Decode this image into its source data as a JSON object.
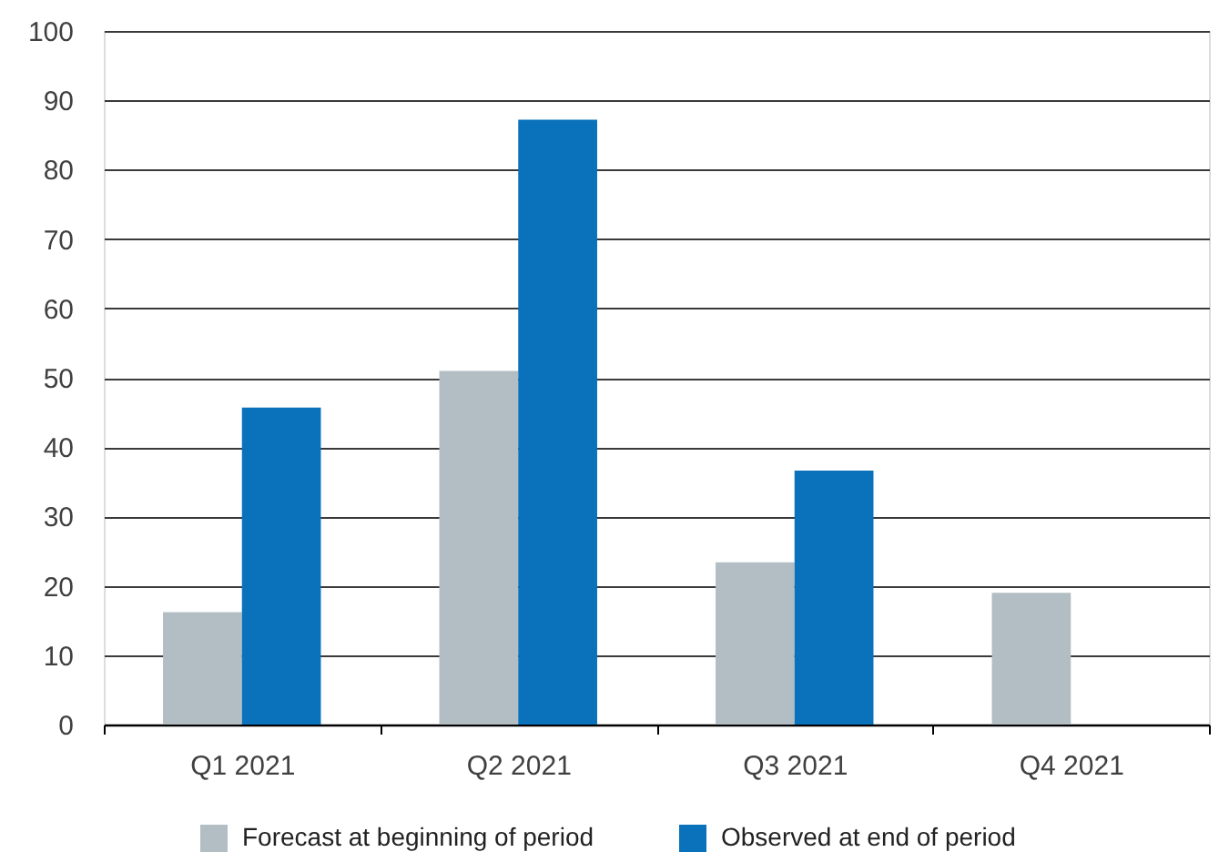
{
  "chart_data": {
    "type": "bar",
    "categories": [
      "Q1 2021",
      "Q2 2021",
      "Q3 2021",
      "Q4 2021"
    ],
    "series": [
      {
        "name": "Forecast at beginning of period",
        "color": "#b2bec3",
        "values": [
          16.2,
          51.0,
          23.4,
          19.0
        ]
      },
      {
        "name": "Observed at end of period",
        "color": "#0972ba",
        "values": [
          45.7,
          87.2,
          36.6,
          null
        ]
      }
    ],
    "ylim": [
      0,
      100
    ],
    "yticks": [
      0,
      10,
      20,
      30,
      40,
      50,
      60,
      70,
      80,
      90,
      100
    ],
    "grid": "y",
    "legend": "bottom"
  }
}
